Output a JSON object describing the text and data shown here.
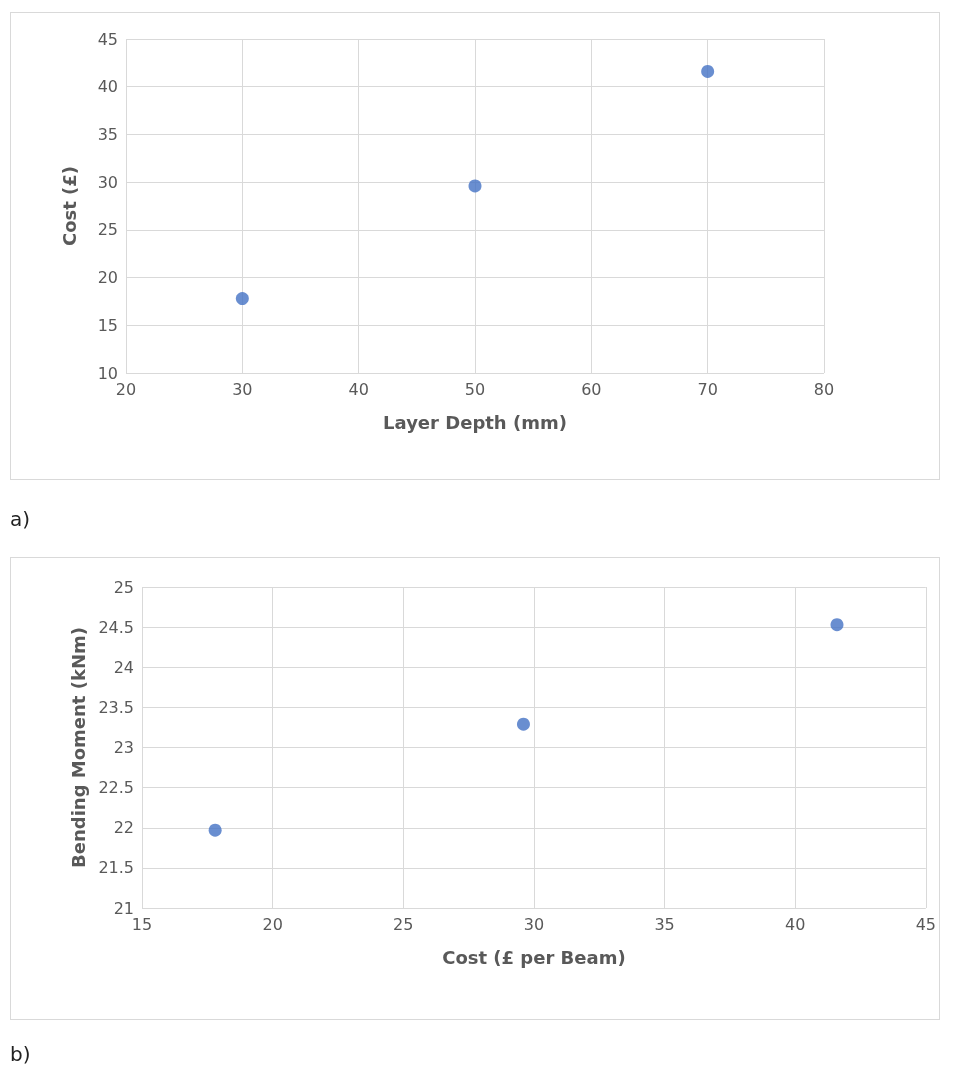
{
  "chart_data": [
    {
      "type": "scatter",
      "xlabel": "Layer Depth (mm)",
      "ylabel": "Cost (£)",
      "x": [
        30,
        50,
        70
      ],
      "series": [
        {
          "color": "#4472c4",
          "values": [
            17.8,
            29.6,
            41.6
          ]
        }
      ],
      "xlim": [
        20,
        80
      ],
      "xticks": [
        20,
        30,
        40,
        50,
        60,
        70,
        80
      ],
      "ylim": [
        10,
        45
      ],
      "yticks": [
        10,
        15,
        20,
        25,
        30,
        35,
        40,
        45
      ],
      "grid": true,
      "marker": "circle",
      "annotations": [
        "a)"
      ]
    },
    {
      "type": "scatter",
      "xlabel": "Cost (£ per Beam)",
      "ylabel": "Bending Moment (kNm)",
      "x": [
        17.8,
        29.6,
        41.6
      ],
      "series": [
        {
          "color": "#4472c4",
          "values": [
            21.97,
            23.29,
            24.53
          ]
        }
      ],
      "xlim": [
        15,
        45
      ],
      "xticks": [
        15,
        20,
        25,
        30,
        35,
        40,
        45
      ],
      "ylim": [
        21,
        25
      ],
      "yticks": [
        21,
        21.5,
        22,
        22.5,
        23,
        23.5,
        24,
        24.5,
        25
      ],
      "grid": true,
      "marker": "circle",
      "annotations": [
        "b)"
      ]
    }
  ]
}
